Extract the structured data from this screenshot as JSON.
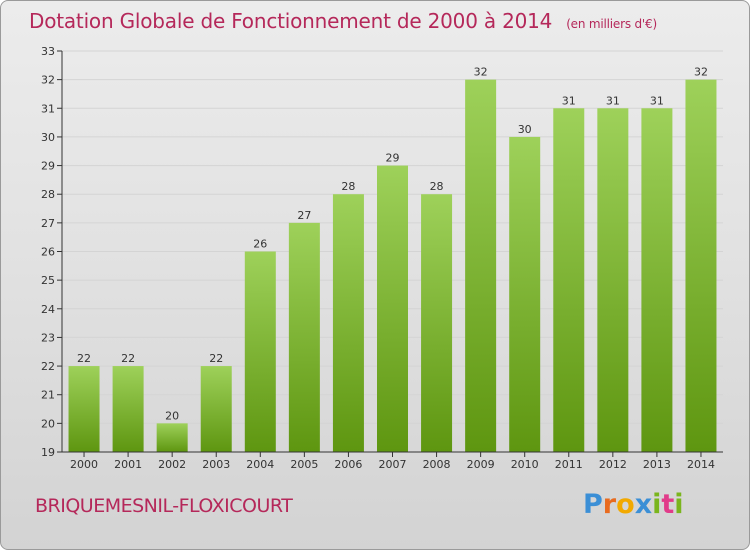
{
  "title": "Dotation Globale de Fonctionnement de 2000 à 2014",
  "unit": "(en milliers d'€)",
  "commune": "BRIQUEMESNIL-FLOXICOURT",
  "logo": {
    "text": "Proxiti"
  },
  "colors": {
    "title": "#b5285a",
    "bar_top": "#9ed15a",
    "bar_bottom": "#5e9610",
    "axis": "#333333",
    "grid": "#d4d4d4"
  },
  "chart_data": {
    "type": "bar",
    "categories": [
      "2000",
      "2001",
      "2002",
      "2003",
      "2004",
      "2005",
      "2006",
      "2007",
      "2008",
      "2009",
      "2010",
      "2011",
      "2012",
      "2013",
      "2014"
    ],
    "values": [
      22,
      22,
      20,
      22,
      26,
      27,
      28,
      29,
      28,
      32,
      30,
      31,
      31,
      31,
      32
    ],
    "data_labels": [
      "22",
      "22",
      "20",
      "22",
      "26",
      "27",
      "28",
      "29",
      "28",
      "32",
      "30",
      "31",
      "31",
      "31",
      "32"
    ],
    "ylim": [
      19,
      33
    ],
    "yticks": [
      19,
      20,
      21,
      22,
      23,
      24,
      25,
      26,
      27,
      28,
      29,
      30,
      31,
      32,
      33
    ],
    "grid": true,
    "legend": "none"
  }
}
